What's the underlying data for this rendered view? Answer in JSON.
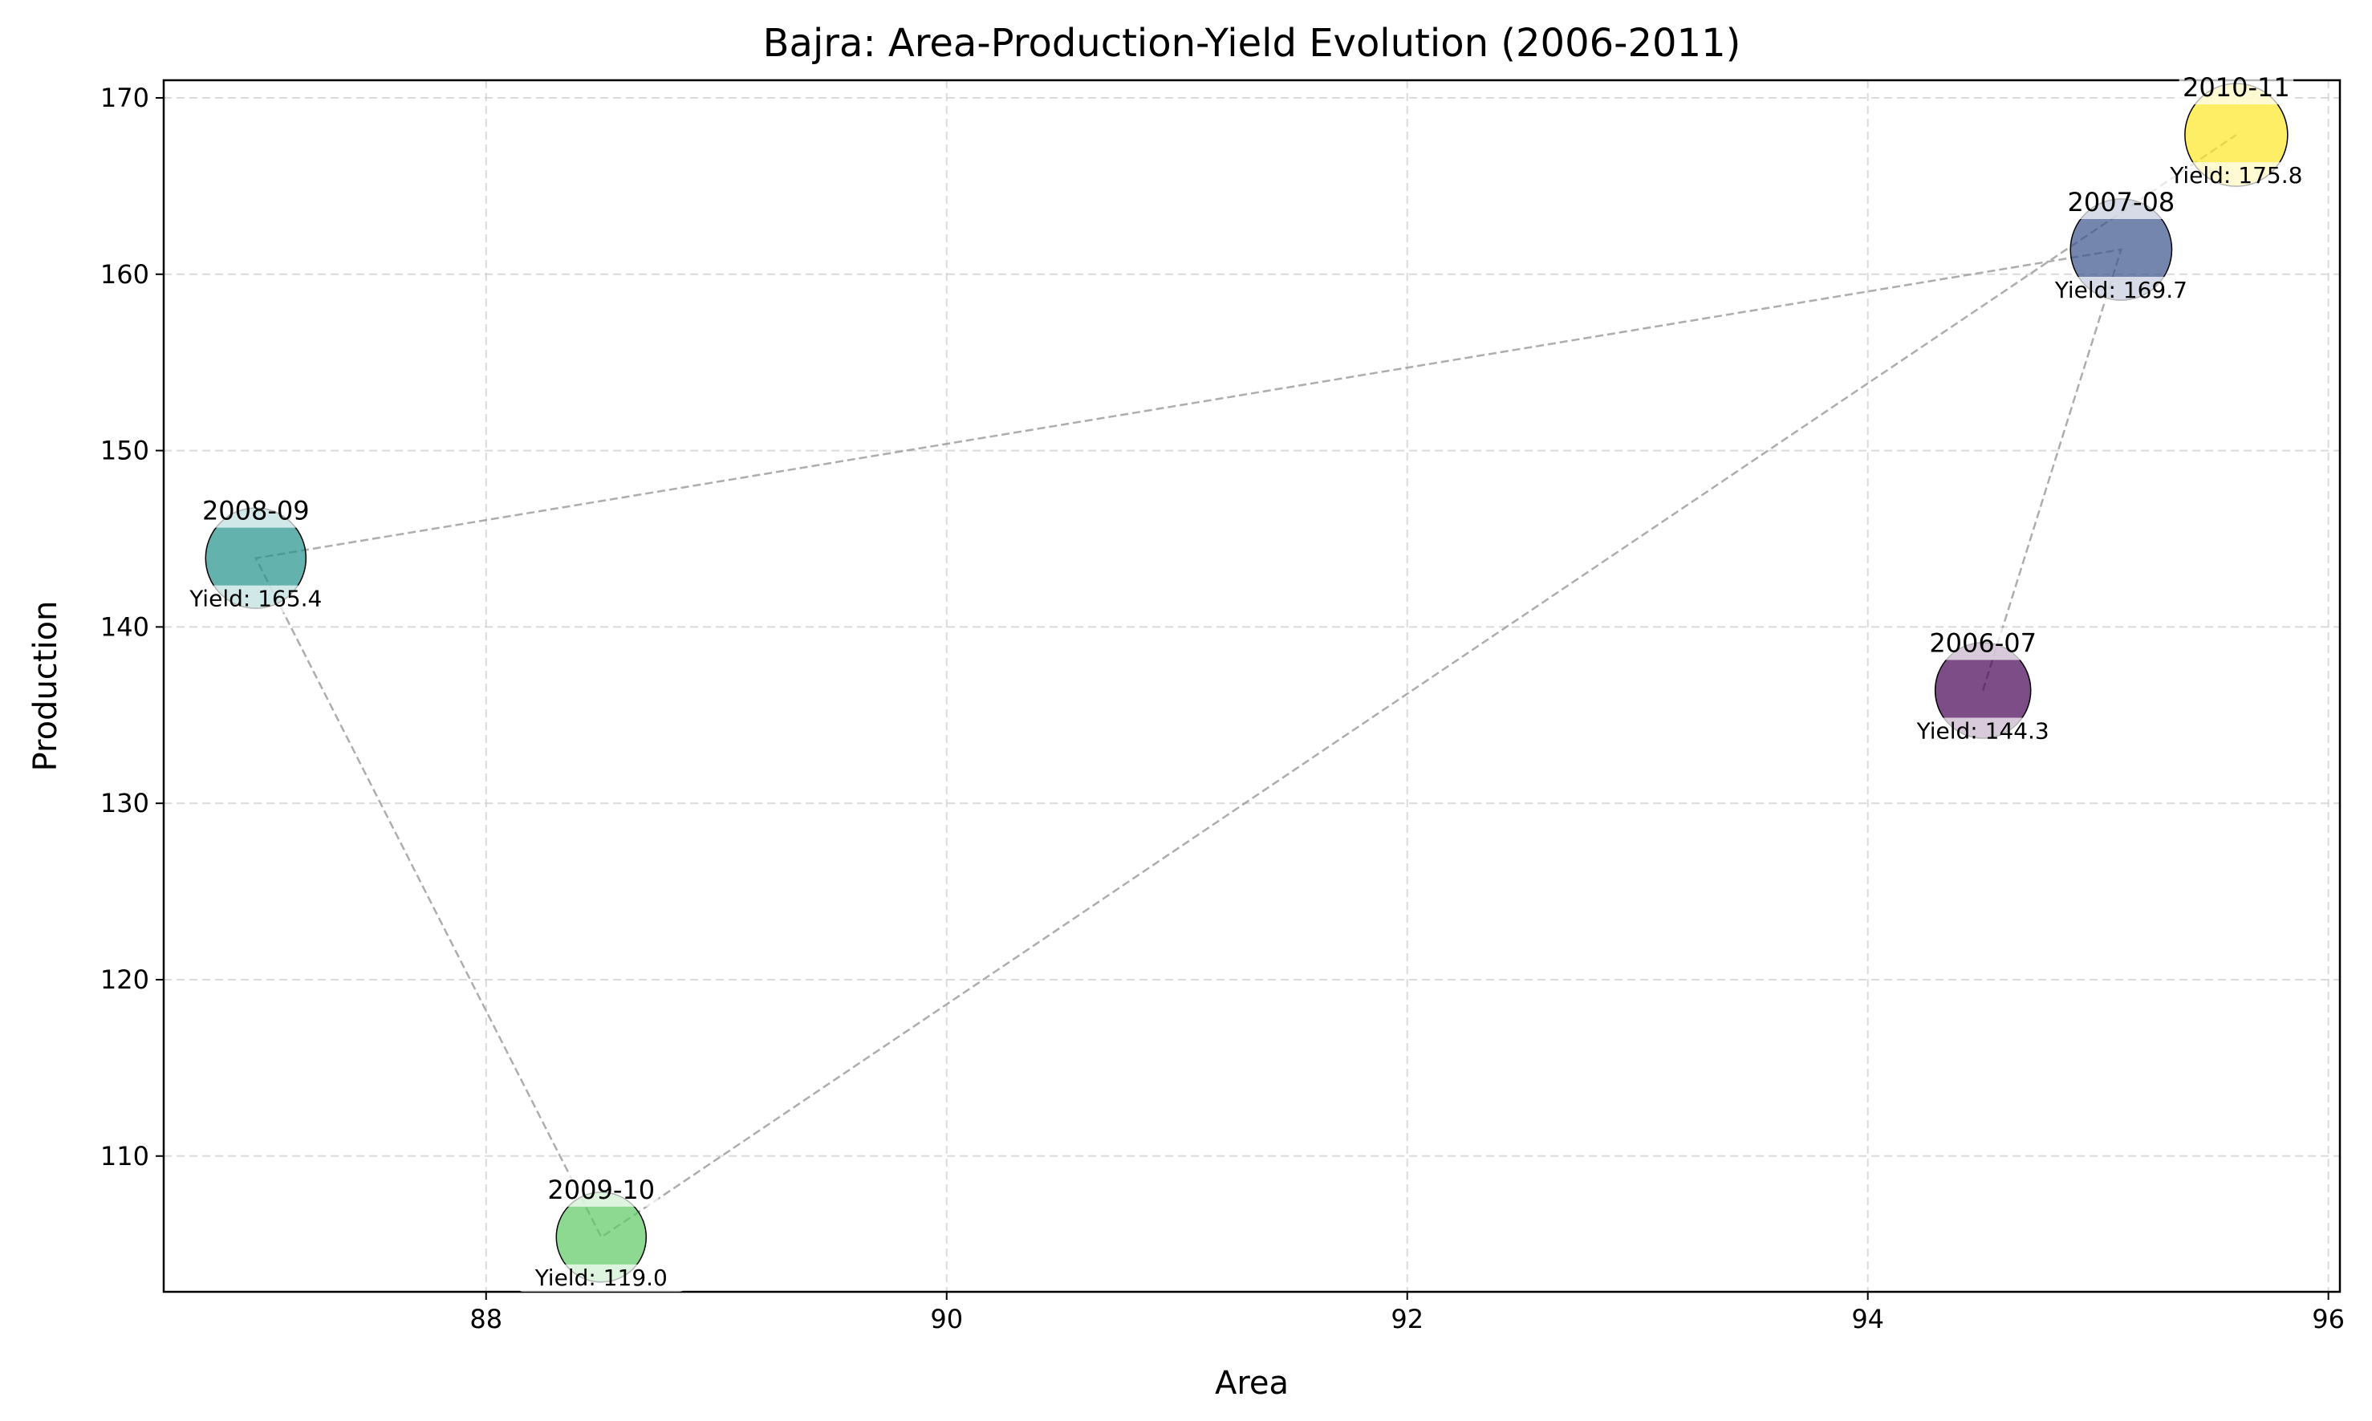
{
  "chart_data": {
    "type": "scatter",
    "title": "Bajra: Area-Production-Yield Evolution (2006-2011)",
    "xlabel": "Area",
    "ylabel": "Production",
    "xlim": [
      86.6,
      96.05
    ],
    "ylim": [
      102.3,
      171.0
    ],
    "xticks": [
      88,
      90,
      92,
      94,
      96
    ],
    "yticks": [
      110,
      120,
      130,
      140,
      150,
      160,
      170
    ],
    "grid": true,
    "connect_points": true,
    "points": [
      {
        "label": "2006-07",
        "x": 94.5,
        "y": 136.4,
        "yield": 144.3,
        "yield_text": "Yield: 144.3",
        "color": "#440154"
      },
      {
        "label": "2007-08",
        "x": 95.1,
        "y": 161.4,
        "yield": 169.7,
        "yield_text": "Yield: 169.7",
        "color": "#3b528b"
      },
      {
        "label": "2008-09",
        "x": 87.0,
        "y": 143.9,
        "yield": 165.4,
        "yield_text": "Yield: 165.4",
        "color": "#21918c"
      },
      {
        "label": "2009-10",
        "x": 88.5,
        "y": 105.4,
        "yield": 119.0,
        "yield_text": "Yield: 119.0",
        "color": "#5ec962"
      },
      {
        "label": "2010-11",
        "x": 95.6,
        "y": 167.9,
        "yield": 175.8,
        "yield_text": "Yield: 175.8",
        "color": "#fde725"
      }
    ]
  }
}
